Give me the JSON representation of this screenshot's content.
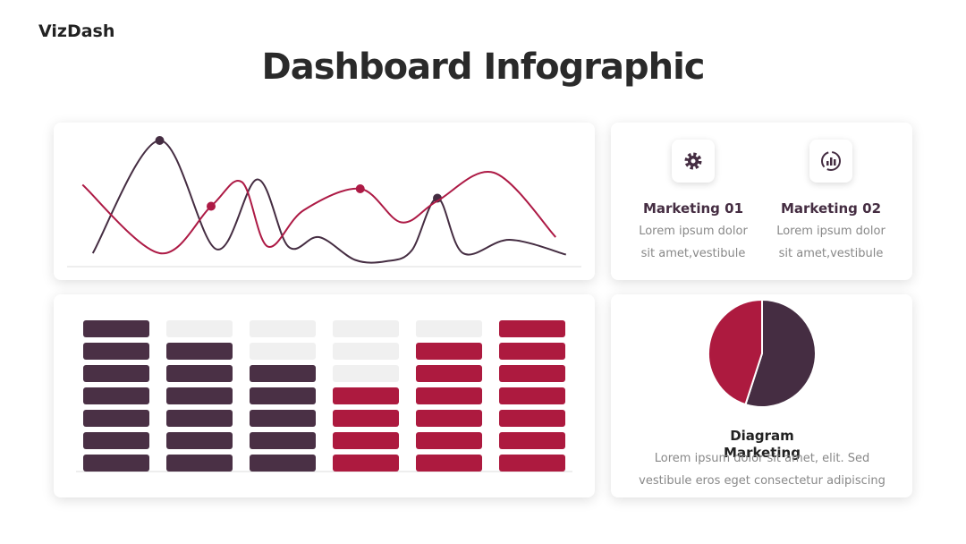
{
  "header": {
    "brand": "VizDash",
    "title": "Dashboard Infographic"
  },
  "cards": [
    {
      "title": "Marketing 01",
      "text": "Lorem ipsum dolor sit amet,vestibule"
    },
    {
      "title": "Marketing 02",
      "text": "Lorem ipsum dolor sit amet,vestibule"
    }
  ],
  "pie_caption": {
    "title": "Diagram Marketing",
    "text": "Lorem ipsum dolor sit amet, elit. Sed vestibule eros eget  consectetur adipiscing"
  },
  "chart_data": [
    {
      "type": "line",
      "xlim": [
        0,
        100
      ],
      "ylim": [
        0,
        100
      ],
      "series": [
        {
          "color": "#452d42",
          "x": [
            5,
            18,
            29,
            37,
            43,
            49,
            56,
            62,
            67,
            72,
            77,
            86,
            97
          ],
          "values": [
            10,
            94,
            13,
            65,
            15,
            22,
            5,
            4,
            12,
            51,
            10,
            20,
            9
          ],
          "highlight": [
            1,
            9
          ]
        },
        {
          "color": "#ad1a45",
          "x": [
            3,
            18,
            28,
            34,
            39,
            46,
            57,
            65,
            72,
            83,
            95
          ],
          "values": [
            61,
            10,
            45,
            63,
            15,
            42,
            58,
            33,
            49,
            70,
            22
          ],
          "highlight": [
            2,
            6
          ]
        }
      ]
    },
    {
      "type": "bar",
      "categories": [
        null,
        null,
        null,
        null,
        null,
        null
      ],
      "ylim": [
        0,
        7
      ],
      "values": [
        7,
        6,
        5,
        4,
        6,
        7
      ],
      "colors": [
        "#4a3045",
        "#4a3045",
        "#4a3045",
        "#ad1a3f",
        "#ad1a3f",
        "#ad1a3f"
      ]
    },
    {
      "type": "pie",
      "values": [
        55,
        45
      ],
      "colors": [
        "#452d42",
        "#ad1a3f"
      ]
    }
  ]
}
